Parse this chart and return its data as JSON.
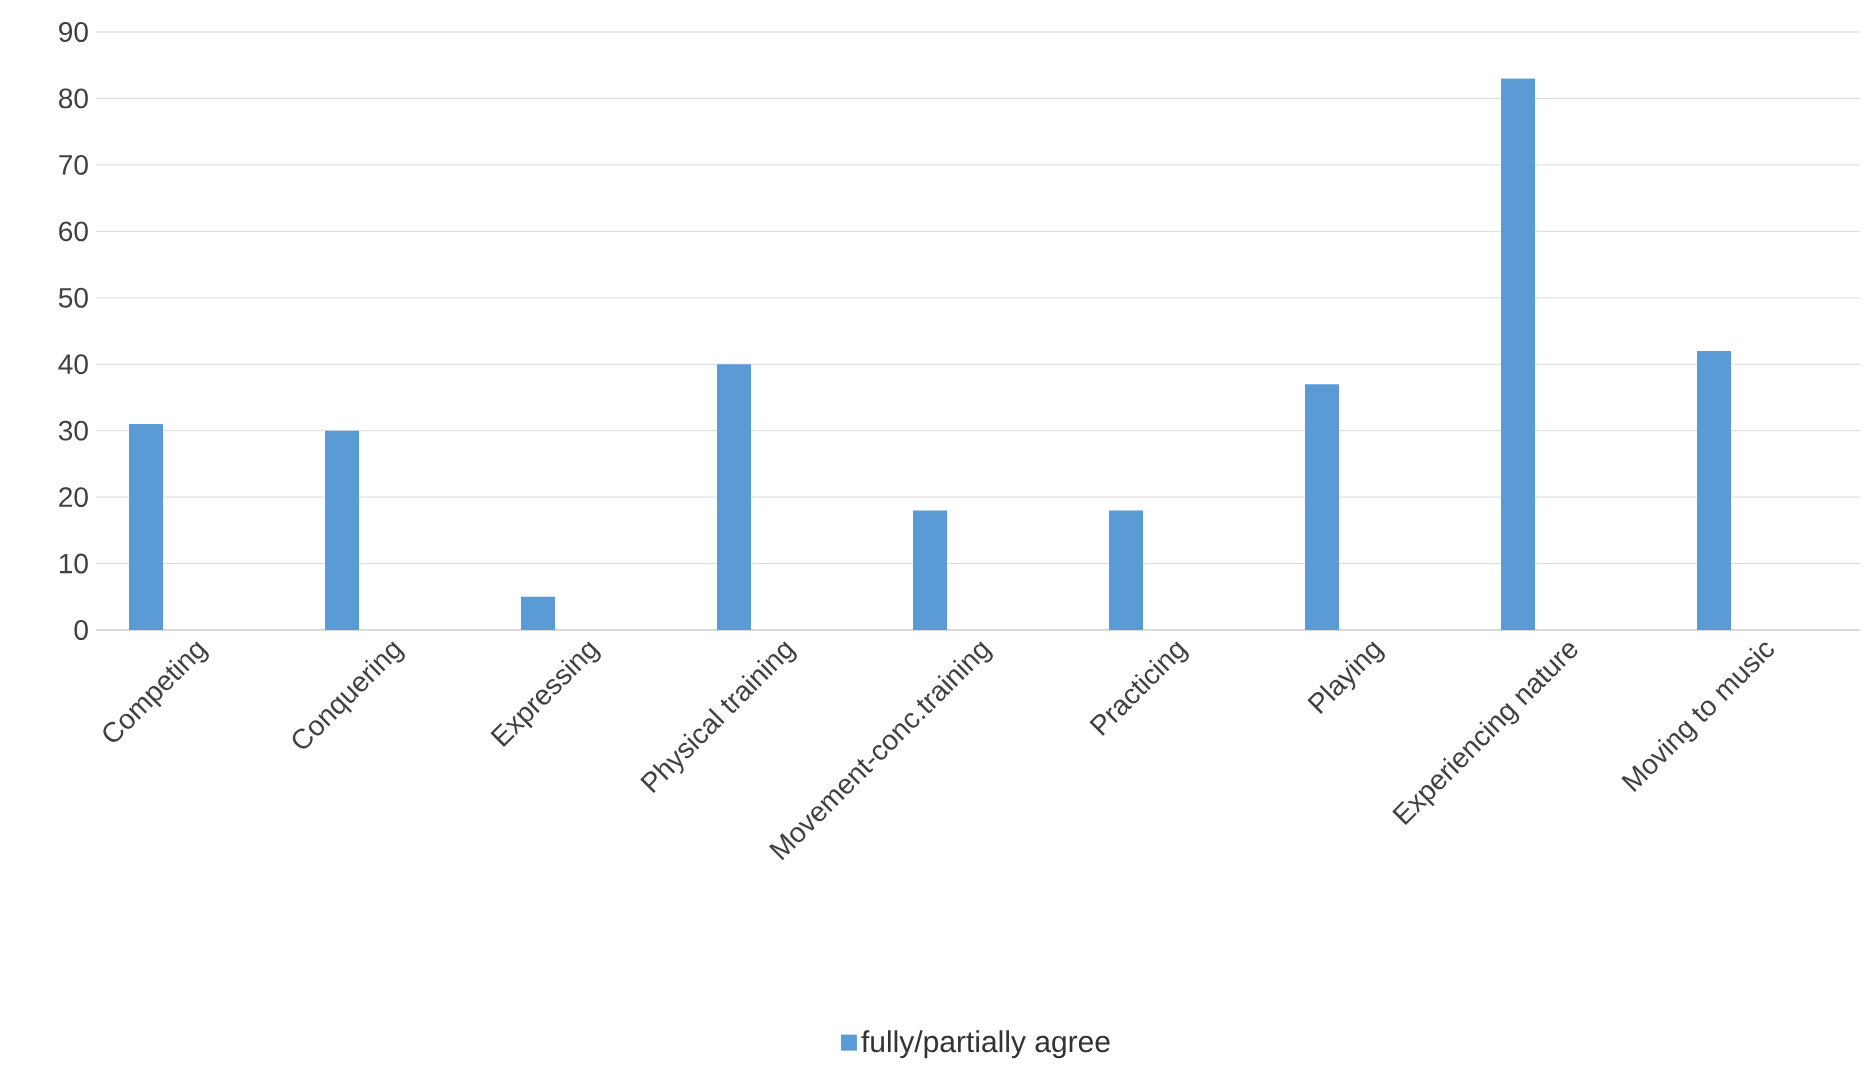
{
  "chart_data": {
    "type": "bar",
    "categories": [
      "Competing",
      "Conquering",
      "Expressing",
      "Physical training",
      "Movement-conc.training",
      "Practicing",
      "Playing",
      "Experiencing nature",
      "Moving to music"
    ],
    "series": [
      {
        "name": "fully/partially agree",
        "color": "#5b9bd5",
        "values": [
          31,
          30,
          5,
          40,
          18,
          18,
          37,
          83,
          42
        ]
      }
    ],
    "ylim": [
      0,
      90
    ],
    "yticks": [
      0,
      10,
      20,
      30,
      40,
      50,
      60,
      70,
      80,
      90
    ],
    "grid": "y",
    "legend": "bottom"
  }
}
